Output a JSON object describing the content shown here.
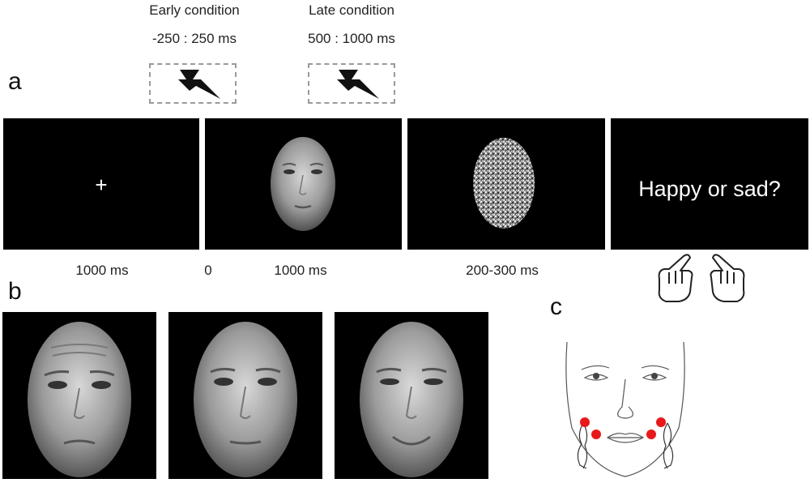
{
  "panel_a": {
    "letter": "a",
    "early": {
      "title": "Early condition",
      "window": "-250 : 250 ms"
    },
    "late": {
      "title": "Late condition",
      "window": "500 : 1000 ms"
    },
    "fixation_symbol": "+",
    "question": "Happy or sad?",
    "timings": {
      "fixation": "1000 ms",
      "face_onset": "0",
      "face": "1000 ms",
      "mask": "200-300 ms"
    }
  },
  "panel_b": {
    "letter": "b"
  },
  "panel_c": {
    "letter": "c"
  },
  "colors": {
    "electrode": "#e8191a",
    "screen": "#000000"
  }
}
